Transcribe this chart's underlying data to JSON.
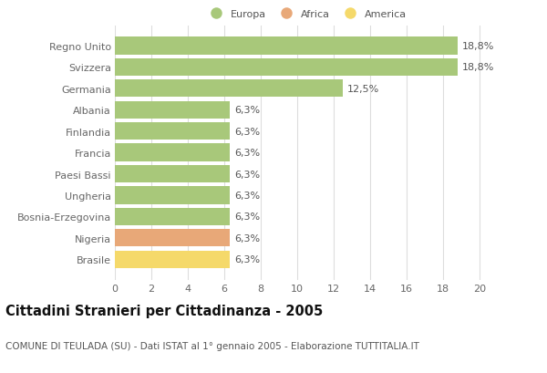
{
  "countries": [
    "Regno Unito",
    "Svizzera",
    "Germania",
    "Albania",
    "Finlandia",
    "Francia",
    "Paesi Bassi",
    "Ungheria",
    "Bosnia-Erzegovina",
    "Nigeria",
    "Brasile"
  ],
  "values": [
    18.8,
    18.8,
    12.5,
    6.3,
    6.3,
    6.3,
    6.3,
    6.3,
    6.3,
    6.3,
    6.3
  ],
  "labels": [
    "18,8%",
    "18,8%",
    "12,5%",
    "6,3%",
    "6,3%",
    "6,3%",
    "6,3%",
    "6,3%",
    "6,3%",
    "6,3%",
    "6,3%"
  ],
  "continent": [
    "Europa",
    "Europa",
    "Europa",
    "Europa",
    "Europa",
    "Europa",
    "Europa",
    "Europa",
    "Europa",
    "Africa",
    "America"
  ],
  "colors": {
    "Europa": "#a8c87a",
    "Africa": "#e8a878",
    "America": "#f5d96a"
  },
  "legend": [
    {
      "label": "Europa",
      "color": "#a8c87a"
    },
    {
      "label": "Africa",
      "color": "#e8a878"
    },
    {
      "label": "America",
      "color": "#f5d96a"
    }
  ],
  "xlim": [
    0,
    21
  ],
  "xticks": [
    0,
    2,
    4,
    6,
    8,
    10,
    12,
    14,
    16,
    18,
    20
  ],
  "title": "Cittadini Stranieri per Cittadinanza - 2005",
  "subtitle": "COMUNE DI TEULADA (SU) - Dati ISTAT al 1° gennaio 2005 - Elaborazione TUTTITALIA.IT",
  "background_color": "#ffffff",
  "plot_bg_color": "#ffffff",
  "grid_color": "#dddddd",
  "label_fontsize": 8.0,
  "tick_fontsize": 8.0,
  "title_fontsize": 10.5,
  "subtitle_fontsize": 7.5
}
